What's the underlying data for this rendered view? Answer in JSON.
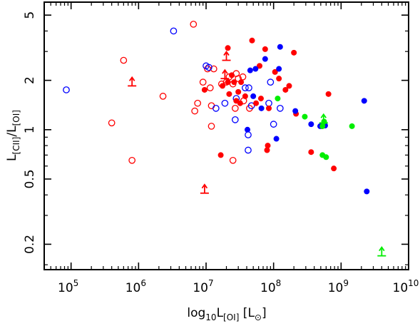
{
  "chart_data": {
    "type": "scatter",
    "title": "",
    "xscale": "log",
    "yscale": "log",
    "xlim": [
      40000,
      10000000000
    ],
    "ylim": [
      0.14,
      6
    ],
    "xlabel": {
      "prefix": "log",
      "prefix_sub": "10",
      "main": "L",
      "main_sub": "[OI]",
      "unit_open": " [L",
      "unit_sub": "⊙",
      "unit_close": "]"
    },
    "ylabel": {
      "main": "L",
      "main_sub": "[CII]",
      "sep": "/L",
      "sep_sub": "[OI]"
    },
    "x_ticks": [
      {
        "value": 100000,
        "base": "10",
        "exp": "5"
      },
      {
        "value": 1000000,
        "base": "10",
        "exp": "6"
      },
      {
        "value": 10000000,
        "base": "10",
        "exp": "7"
      },
      {
        "value": 100000000,
        "base": "10",
        "exp": "8"
      },
      {
        "value": 1000000000,
        "base": "10",
        "exp": "9"
      },
      {
        "value": 10000000000,
        "base": "10",
        "exp": "10"
      }
    ],
    "y_ticks": [
      {
        "value": 0.2,
        "label": "0.2"
      },
      {
        "value": 0.5,
        "label": "0.5"
      },
      {
        "value": 1,
        "label": "1"
      },
      {
        "value": 2,
        "label": "2"
      },
      {
        "value": 5,
        "label": "5"
      }
    ],
    "colors": {
      "red": "#ff0000",
      "blue": "#0000ff",
      "green": "#00ee00"
    },
    "series": [
      {
        "color": "red",
        "marker": "open-circle",
        "points": [
          [
            6500000.0,
            4.4
          ],
          [
            600000.0,
            2.65
          ],
          [
            2300000.0,
            1.6
          ],
          [
            400000.0,
            1.1
          ],
          [
            800000.0,
            0.65
          ],
          [
            9000000.0,
            1.95
          ],
          [
            10500000.0,
            2.35
          ],
          [
            13000000.0,
            2.35
          ],
          [
            11500000.0,
            1.8
          ],
          [
            12000000.0,
            1.4
          ],
          [
            7500000.0,
            1.45
          ],
          [
            6800000.0,
            1.3
          ],
          [
            12000000.0,
            1.05
          ],
          [
            17000000.0,
            1.9
          ],
          [
            20000000.0,
            1.95
          ],
          [
            22000000.0,
            2.1
          ],
          [
            25000000.0,
            1.9
          ],
          [
            28000000.0,
            2.2
          ],
          [
            30000000.0,
            2.05
          ],
          [
            35000000.0,
            2.1
          ],
          [
            25000000.0,
            0.65
          ],
          [
            27000000.0,
            1.35
          ],
          [
            36000000.0,
            1.5
          ],
          [
            44000000.0,
            1.35
          ]
        ]
      },
      {
        "color": "blue",
        "marker": "open-circle",
        "points": [
          [
            85000.0,
            1.75
          ],
          [
            3300000.0,
            4.0
          ],
          [
            10000000.0,
            2.45
          ],
          [
            11000000.0,
            2.4
          ],
          [
            14000000.0,
            1.35
          ],
          [
            19000000.0,
            1.45
          ],
          [
            28000000.0,
            1.55
          ],
          [
            27000000.0,
            1.15
          ],
          [
            38000000.0,
            1.8
          ],
          [
            43000000.0,
            1.8
          ],
          [
            47000000.0,
            1.4
          ],
          [
            42000000.0,
            0.93
          ],
          [
            42000000.0,
            0.75
          ],
          [
            90000000.0,
            1.95
          ],
          [
            125000000.0,
            1.35
          ],
          [
            100000000.0,
            1.08
          ],
          [
            85000000.0,
            1.45
          ]
        ]
      },
      {
        "color": "red",
        "marker": "filled-circle",
        "points": [
          [
            21000000.0,
            3.15
          ],
          [
            24000000.0,
            2.15
          ],
          [
            48000000.0,
            3.5
          ],
          [
            75000000.0,
            3.1
          ],
          [
            62000000.0,
            2.45
          ],
          [
            21000000.0,
            1.95
          ],
          [
            26000000.0,
            1.95
          ],
          [
            22000000.0,
            1.65
          ],
          [
            17500000.0,
            1.85
          ],
          [
            9500000.0,
            1.75
          ],
          [
            33000000.0,
            1.95
          ],
          [
            30000000.0,
            1.7
          ],
          [
            38000000.0,
            1.6
          ],
          [
            28000000.0,
            1.5
          ],
          [
            32000000.0,
            1.45
          ],
          [
            65000000.0,
            1.55
          ],
          [
            55000000.0,
            1.45
          ],
          [
            85000000.0,
            1.35
          ],
          [
            105000000.0,
            2.25
          ],
          [
            120000000.0,
            2.05
          ],
          [
            150000000.0,
            1.75
          ],
          [
            170000000.0,
            1.85
          ],
          [
            200000000.0,
            2.95
          ],
          [
            215000000.0,
            1.25
          ],
          [
            16500000.0,
            0.7
          ],
          [
            82000000.0,
            0.8
          ],
          [
            80000000.0,
            0.75
          ],
          [
            360000000.0,
            0.73
          ],
          [
            650000000.0,
            1.65
          ],
          [
            520000000.0,
            1.05
          ],
          [
            780000000.0,
            0.58
          ]
        ]
      },
      {
        "color": "blue",
        "marker": "filled-circle",
        "points": [
          [
            45000000.0,
            2.3
          ],
          [
            54000000.0,
            2.35
          ],
          [
            75000000.0,
            2.7
          ],
          [
            120000000.0,
            2.35
          ],
          [
            125000000.0,
            3.2
          ],
          [
            50000000.0,
            1.6
          ],
          [
            66000000.0,
            1.35
          ],
          [
            41000000.0,
            1.0
          ],
          [
            110000000.0,
            0.88
          ],
          [
            210000000.0,
            1.3
          ],
          [
            360000000.0,
            1.08
          ],
          [
            490000000.0,
            1.05
          ],
          [
            580000000.0,
            1.06
          ],
          [
            2200000000.0,
            1.5
          ],
          [
            2400000000.0,
            0.42
          ]
        ]
      },
      {
        "color": "green",
        "marker": "filled-circle",
        "points": [
          [
            115000000.0,
            1.55
          ],
          [
            290000000.0,
            1.2
          ],
          [
            530000000.0,
            0.7
          ],
          [
            600000000.0,
            0.68
          ],
          [
            1450000000.0,
            1.05
          ],
          [
            530000000.0,
            1.05
          ],
          [
            560000000.0,
            1.12
          ]
        ]
      },
      {
        "color": "red",
        "marker": "lower-limit",
        "points": [
          [
            800000.0,
            1.85
          ],
          [
            9500000.0,
            0.41
          ],
          [
            20000000.0,
            2.65
          ],
          [
            19000000.0,
            2.05
          ]
        ]
      },
      {
        "color": "green",
        "marker": "lower-limit",
        "points": [
          [
            550000000.0,
            1.1
          ],
          [
            4000000000.0,
            0.17
          ]
        ]
      }
    ]
  }
}
